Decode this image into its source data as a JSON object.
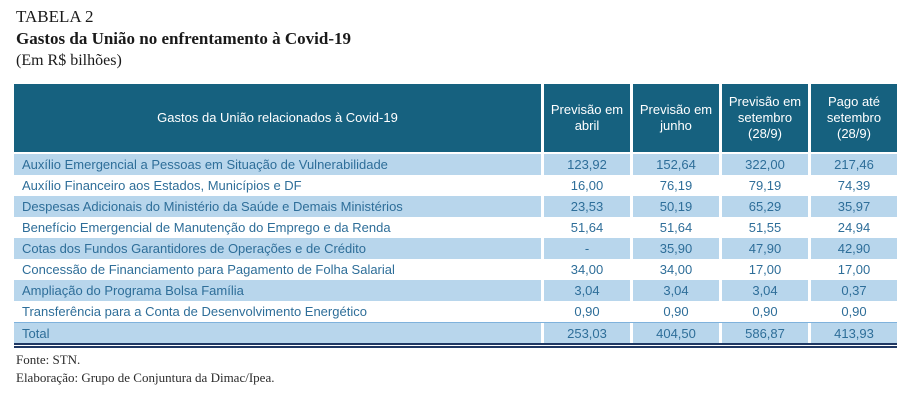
{
  "title": {
    "line1": "TABELA 2",
    "line2": "Gastos da União no enfrentamento à Covid-19",
    "line3": "(Em R$ bilhões)"
  },
  "table": {
    "header": {
      "label": "Gastos da União relacionados à Covid-19",
      "col1": "Previsão em\nabril",
      "col2": "Previsão em\njunho",
      "col3": "Previsão em\nsetembro\n(28/9)",
      "col4": "Pago até\nsetembro\n(28/9)"
    },
    "rows": [
      {
        "label": "Auxílio Emergencial a Pessoas em Situação de Vulnerabilidade",
        "values": [
          "123,92",
          "152,64",
          "322,00",
          "217,46"
        ]
      },
      {
        "label": "Auxílio Financeiro aos Estados, Municípios e DF",
        "values": [
          "16,00",
          "76,19",
          "79,19",
          "74,39"
        ]
      },
      {
        "label": "Despesas Adicionais do Ministério da Saúde e Demais Ministérios",
        "values": [
          "23,53",
          "50,19",
          "65,29",
          "35,97"
        ]
      },
      {
        "label": "Benefício Emergencial de Manutenção do Emprego e da Renda",
        "values": [
          "51,64",
          "51,64",
          "51,55",
          "24,94"
        ]
      },
      {
        "label": "Cotas dos Fundos Garantidores de Operações e de Crédito",
        "values": [
          "-",
          "35,90",
          "47,90",
          "42,90"
        ]
      },
      {
        "label": "Concessão de Financiamento para Pagamento de Folha Salarial",
        "values": [
          "34,00",
          "34,00",
          "17,00",
          "17,00"
        ]
      },
      {
        "label": "Ampliação do Programa Bolsa Família",
        "values": [
          "3,04",
          "3,04",
          "3,04",
          "0,37"
        ]
      },
      {
        "label": "Transferência para a Conta de Desenvolvimento Energético",
        "values": [
          "0,90",
          "0,90",
          "0,90",
          "0,90"
        ]
      }
    ],
    "total": {
      "label": "Total",
      "values": [
        "253,03",
        "404,50",
        "586,87",
        "413,93"
      ]
    }
  },
  "footer": {
    "source": "Fonte: STN.",
    "elaboration": "Elaboração: Grupo de Conjuntura da Dimac/Ipea."
  },
  "colors": {
    "header_bg": "#16617F",
    "row_alt_bg": "#B8D6EC",
    "row_text": "#2E6E99",
    "header_text": "#FFFFFF",
    "total_bottom_border": "#1F3864",
    "total_top_border": "#7FB2DC"
  }
}
